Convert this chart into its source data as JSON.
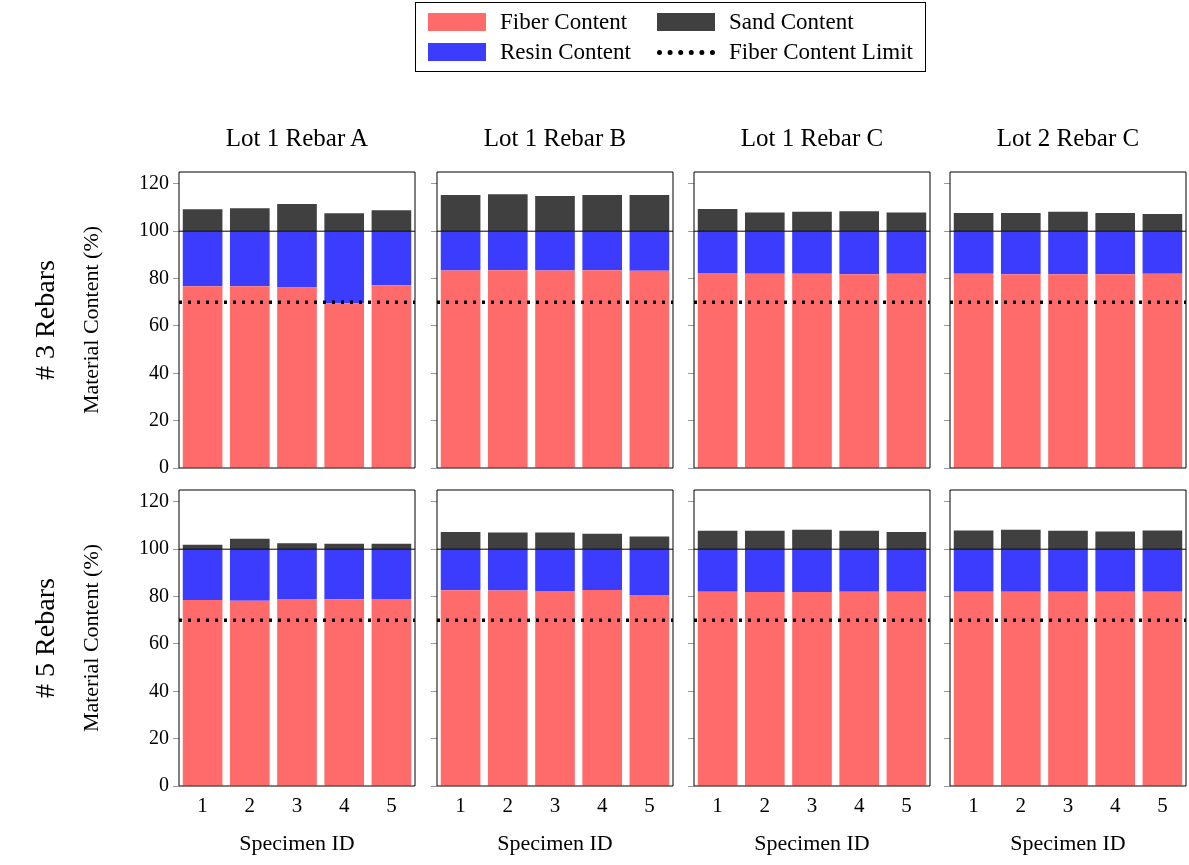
{
  "chart_data": [
    {
      "type": "bar",
      "title": "Lot 1 Rebar A",
      "ylabel": "Material Content (%)",
      "annotations": [
        "# 3 Rebars"
      ],
      "categories": [
        "1",
        "2",
        "3",
        "4",
        "5"
      ],
      "stacked": true,
      "legend": "top",
      "grid": false,
      "tick_labels": "y",
      "ylim": [
        0,
        125
      ],
      "yticks": [
        0,
        20,
        40,
        60,
        80,
        100,
        120
      ],
      "series": [
        {
          "name": "Fiber Content",
          "color": "#ff6b6b",
          "values": [
            76.8,
            76.8,
            76.2,
            69.6,
            77.2
          ]
        },
        {
          "name": "Resin Content",
          "color": "#3c3cff",
          "values": [
            23.2,
            23.2,
            23.8,
            30.4,
            22.8
          ]
        },
        {
          "name": "Sand Content",
          "color": "#404040",
          "values": [
            9.3,
            9.7,
            11.5,
            7.6,
            8.8
          ]
        }
      ],
      "ref_lines": [
        {
          "axis": "y",
          "value": 100,
          "color": "#000000",
          "line_style": "solid"
        },
        {
          "axis": "y",
          "value": 70,
          "label": "Fiber Content Limit",
          "color": "#000000",
          "line_style": "dotted"
        }
      ]
    },
    {
      "type": "bar",
      "title": "Lot 1 Rebar B",
      "categories": [
        "1",
        "2",
        "3",
        "4",
        "5"
      ],
      "stacked": true,
      "grid": false,
      "tick_labels": false,
      "ylim": [
        0,
        125
      ],
      "yticks": [
        0,
        20,
        40,
        60,
        80,
        100,
        120
      ],
      "series": [
        {
          "color": "#ff6b6b",
          "values": [
            83.4,
            83.5,
            83.4,
            83.5,
            83.3
          ]
        },
        {
          "color": "#3c3cff",
          "values": [
            16.6,
            16.5,
            16.6,
            16.5,
            16.7
          ]
        },
        {
          "color": "#404040",
          "values": [
            15.3,
            15.6,
            14.9,
            15.3,
            15.3
          ]
        }
      ],
      "ref_lines": [
        {
          "axis": "y",
          "value": 100,
          "color": "#000000",
          "line_style": "solid"
        },
        {
          "axis": "y",
          "value": 70,
          "color": "#000000",
          "line_style": "dotted"
        }
      ]
    },
    {
      "type": "bar",
      "title": "Lot 1 Rebar C",
      "categories": [
        "1",
        "2",
        "3",
        "4",
        "5"
      ],
      "stacked": true,
      "grid": false,
      "tick_labels": false,
      "ylim": [
        0,
        125
      ],
      "yticks": [
        0,
        20,
        40,
        60,
        80,
        100,
        120
      ],
      "series": [
        {
          "color": "#ff6b6b",
          "values": [
            82.3,
            82.0,
            82.0,
            81.8,
            82.0
          ]
        },
        {
          "color": "#3c3cff",
          "values": [
            17.7,
            18.0,
            18.0,
            18.2,
            18.0
          ]
        },
        {
          "color": "#404040",
          "values": [
            9.4,
            7.9,
            8.2,
            8.4,
            7.9
          ]
        }
      ],
      "ref_lines": [
        {
          "axis": "y",
          "value": 100,
          "color": "#000000",
          "line_style": "solid"
        },
        {
          "axis": "y",
          "value": 70,
          "color": "#000000",
          "line_style": "dotted"
        }
      ]
    },
    {
      "type": "bar",
      "title": "Lot 2 Rebar C",
      "categories": [
        "1",
        "2",
        "3",
        "4",
        "5"
      ],
      "stacked": true,
      "grid": false,
      "tick_labels": false,
      "ylim": [
        0,
        125
      ],
      "yticks": [
        0,
        20,
        40,
        60,
        80,
        100,
        120
      ],
      "series": [
        {
          "color": "#ff6b6b",
          "values": [
            82.0,
            81.8,
            81.8,
            81.8,
            82.0
          ]
        },
        {
          "color": "#3c3cff",
          "values": [
            18.0,
            18.2,
            18.2,
            18.2,
            18.0
          ]
        },
        {
          "color": "#404040",
          "values": [
            7.7,
            7.7,
            8.2,
            7.7,
            7.3
          ]
        }
      ],
      "ref_lines": [
        {
          "axis": "y",
          "value": 100,
          "color": "#000000",
          "line_style": "solid"
        },
        {
          "axis": "y",
          "value": 70,
          "color": "#000000",
          "line_style": "dotted"
        }
      ]
    },
    {
      "type": "bar",
      "xlabel": "Specimen ID",
      "ylabel": "Material Content (%)",
      "annotations": [
        "# 5 Rebars"
      ],
      "categories": [
        "1",
        "2",
        "3",
        "4",
        "5"
      ],
      "stacked": true,
      "grid": false,
      "ylim": [
        0,
        125
      ],
      "yticks": [
        0,
        20,
        40,
        60,
        80,
        100,
        120
      ],
      "series": [
        {
          "color": "#ff6b6b",
          "values": [
            78.6,
            78.2,
            79.0,
            78.9,
            79.0
          ]
        },
        {
          "color": "#3c3cff",
          "values": [
            21.4,
            21.8,
            21.0,
            21.1,
            21.0
          ]
        },
        {
          "color": "#404040",
          "values": [
            1.9,
            4.4,
            2.5,
            2.3,
            2.3
          ]
        }
      ],
      "ref_lines": [
        {
          "axis": "y",
          "value": 100,
          "color": "#000000",
          "line_style": "solid"
        },
        {
          "axis": "y",
          "value": 70,
          "color": "#000000",
          "line_style": "dotted"
        }
      ]
    },
    {
      "type": "bar",
      "xlabel": "Specimen ID",
      "categories": [
        "1",
        "2",
        "3",
        "4",
        "5"
      ],
      "stacked": true,
      "grid": false,
      "tick_labels": "x",
      "ylim": [
        0,
        125
      ],
      "yticks": [
        0,
        20,
        40,
        60,
        80,
        100,
        120
      ],
      "series": [
        {
          "color": "#ff6b6b",
          "values": [
            82.7,
            82.6,
            82.4,
            82.8,
            80.7
          ]
        },
        {
          "color": "#3c3cff",
          "values": [
            17.3,
            17.4,
            17.6,
            17.2,
            19.3
          ]
        },
        {
          "color": "#404040",
          "values": [
            7.3,
            7.0,
            7.0,
            6.5,
            5.4
          ]
        }
      ],
      "ref_lines": [
        {
          "axis": "y",
          "value": 100,
          "color": "#000000",
          "line_style": "solid"
        },
        {
          "axis": "y",
          "value": 70,
          "color": "#000000",
          "line_style": "dotted"
        }
      ]
    },
    {
      "type": "bar",
      "xlabel": "Specimen ID",
      "categories": [
        "1",
        "2",
        "3",
        "4",
        "5"
      ],
      "stacked": true,
      "grid": false,
      "tick_labels": "x",
      "ylim": [
        0,
        125
      ],
      "yticks": [
        0,
        20,
        40,
        60,
        80,
        100,
        120
      ],
      "series": [
        {
          "color": "#ff6b6b",
          "values": [
            82.0,
            81.9,
            81.9,
            82.0,
            82.0
          ]
        },
        {
          "color": "#3c3cff",
          "values": [
            18.0,
            18.1,
            18.1,
            18.0,
            18.0
          ]
        },
        {
          "color": "#404040",
          "values": [
            7.8,
            7.8,
            8.2,
            7.8,
            7.3
          ]
        }
      ],
      "ref_lines": [
        {
          "axis": "y",
          "value": 100,
          "color": "#000000",
          "line_style": "solid"
        },
        {
          "axis": "y",
          "value": 70,
          "color": "#000000",
          "line_style": "dotted"
        }
      ]
    },
    {
      "type": "bar",
      "xlabel": "Specimen ID",
      "categories": [
        "1",
        "2",
        "3",
        "4",
        "5"
      ],
      "stacked": true,
      "grid": false,
      "tick_labels": "x",
      "ylim": [
        0,
        125
      ],
      "yticks": [
        0,
        20,
        40,
        60,
        80,
        100,
        120
      ],
      "series": [
        {
          "color": "#ff6b6b",
          "values": [
            82.0,
            82.0,
            82.0,
            82.0,
            82.0
          ]
        },
        {
          "color": "#3c3cff",
          "values": [
            18.0,
            18.0,
            18.0,
            18.0,
            18.0
          ]
        },
        {
          "color": "#404040",
          "values": [
            7.9,
            8.2,
            7.8,
            7.5,
            7.9
          ]
        }
      ],
      "ref_lines": [
        {
          "axis": "y",
          "value": 100,
          "color": "#000000",
          "line_style": "solid"
        },
        {
          "axis": "y",
          "value": 70,
          "color": "#000000",
          "line_style": "dotted"
        }
      ]
    }
  ]
}
